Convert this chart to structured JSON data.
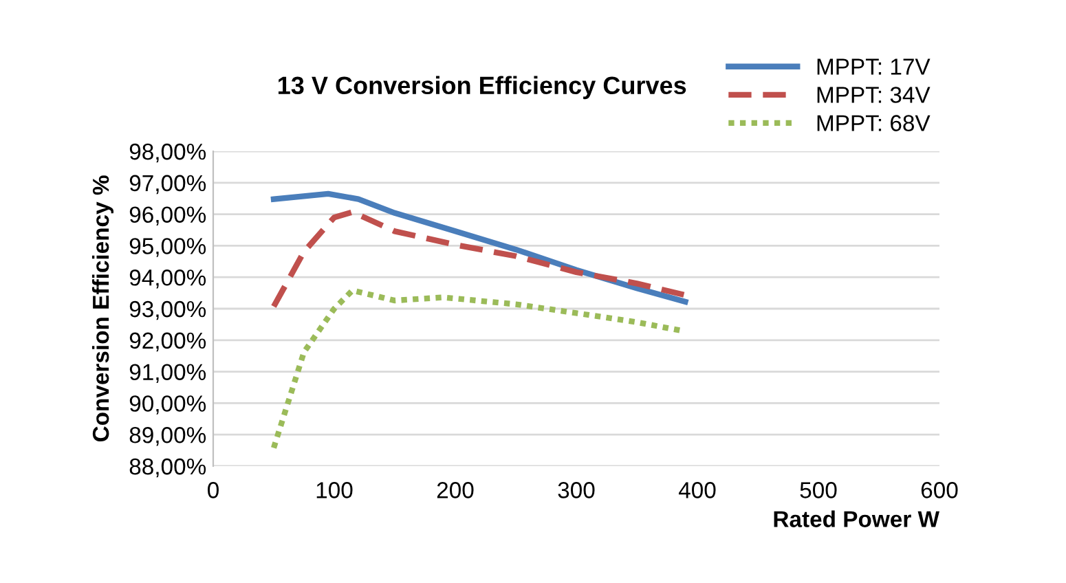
{
  "chart_data": {
    "type": "line",
    "title": "13 V Conversion Efficiency Curves",
    "xlabel": "Rated Power W",
    "ylabel": "Conversion Efficiency %",
    "series": [
      {
        "name": "MPPT: 17V",
        "color": "#4a7ebb",
        "line_style": "solid",
        "x": [
          50,
          95,
          120,
          150,
          200,
          250,
          300,
          350,
          390
        ],
        "values": [
          96.48,
          96.65,
          96.48,
          96.04,
          95.46,
          94.88,
          94.23,
          93.65,
          93.22
        ]
      },
      {
        "name": "MPPT: 34V",
        "color": "#c0504d",
        "line_style": "dashed",
        "x": [
          50,
          75,
          100,
          115,
          150,
          200,
          250,
          300,
          350,
          390
        ],
        "values": [
          93.07,
          94.81,
          95.9,
          96.07,
          95.46,
          95.03,
          94.67,
          94.16,
          93.8,
          93.43
        ]
      },
      {
        "name": "MPPT: 68V",
        "color": "#9bbb59",
        "line_style": "dotted",
        "x": [
          50,
          75,
          100,
          115,
          150,
          190,
          250,
          300,
          350,
          390
        ],
        "values": [
          88.58,
          91.62,
          93.0,
          93.58,
          93.26,
          93.36,
          93.14,
          92.86,
          92.57,
          92.28
        ]
      }
    ],
    "xlim": [
      0,
      600
    ],
    "xticks": [
      0,
      100,
      200,
      300,
      400,
      500,
      600
    ],
    "ylim": [
      88,
      98
    ],
    "yticks": [
      {
        "value": 88,
        "label": "88,00%"
      },
      {
        "value": 89,
        "label": "89,00%"
      },
      {
        "value": 90,
        "label": "90,00%"
      },
      {
        "value": 91,
        "label": "91,00%"
      },
      {
        "value": 92,
        "label": "92,00%"
      },
      {
        "value": 93,
        "label": "93,00%"
      },
      {
        "value": 94,
        "label": "94,00%"
      },
      {
        "value": 95,
        "label": "95,00%"
      },
      {
        "value": 96,
        "label": "96,00%"
      },
      {
        "value": 97,
        "label": "97,00%"
      },
      {
        "value": 98,
        "label": "98,00%"
      }
    ],
    "grid": "y",
    "legend": "top right",
    "marker": "none"
  }
}
